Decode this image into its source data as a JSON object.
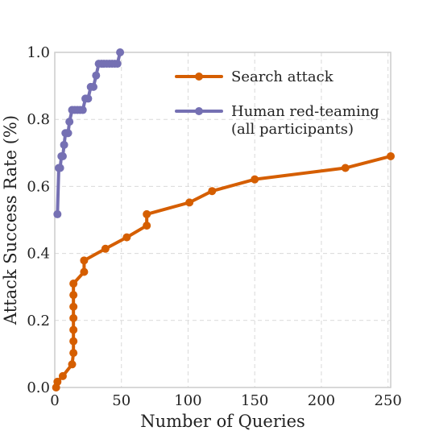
{
  "chart_data": {
    "type": "line",
    "title": "",
    "xlabel": "Number of Queries",
    "ylabel": "Attack Success Rate (%)",
    "xlim": [
      0,
      252
    ],
    "ylim": [
      0,
      1.0
    ],
    "xticks": [
      0,
      50,
      100,
      150,
      200,
      250
    ],
    "yticks": [
      0.0,
      0.2,
      0.4,
      0.6,
      0.8,
      1.0
    ],
    "xtick_labels": [
      "0",
      "50",
      "100",
      "150",
      "200",
      "250"
    ],
    "ytick_labels": [
      "0.0",
      "0.2",
      "0.4",
      "0.6",
      "0.8",
      "1.0"
    ],
    "grid": true,
    "legend_position": "top-right",
    "series": [
      {
        "name": "Search attack",
        "color": "#d55e00",
        "points": [
          [
            1,
            0.0
          ],
          [
            2,
            0.017
          ],
          [
            6,
            0.034
          ],
          [
            13,
            0.069
          ],
          [
            14,
            0.103
          ],
          [
            14,
            0.138
          ],
          [
            14,
            0.172
          ],
          [
            14,
            0.207
          ],
          [
            14,
            0.241
          ],
          [
            14,
            0.276
          ],
          [
            14,
            0.31
          ],
          [
            22,
            0.345
          ],
          [
            22,
            0.379
          ],
          [
            38,
            0.414
          ],
          [
            54,
            0.448
          ],
          [
            69,
            0.483
          ],
          [
            69,
            0.517
          ],
          [
            101,
            0.552
          ],
          [
            118,
            0.586
          ],
          [
            150,
            0.621
          ],
          [
            218,
            0.655
          ],
          [
            252,
            0.69
          ]
        ]
      },
      {
        "name": "Human red-teaming\n(all participants)",
        "color": "#7570b3",
        "points": [
          [
            2,
            0.517
          ],
          [
            3,
            0.655
          ],
          [
            4,
            0.655
          ],
          [
            5,
            0.69
          ],
          [
            6,
            0.69
          ],
          [
            7,
            0.724
          ],
          [
            8,
            0.759
          ],
          [
            9,
            0.759
          ],
          [
            10,
            0.759
          ],
          [
            11,
            0.793
          ],
          [
            13,
            0.828
          ],
          [
            15,
            0.828
          ],
          [
            17,
            0.828
          ],
          [
            19,
            0.828
          ],
          [
            21,
            0.828
          ],
          [
            23,
            0.862
          ],
          [
            25,
            0.862
          ],
          [
            27,
            0.897
          ],
          [
            29,
            0.897
          ],
          [
            31,
            0.931
          ],
          [
            33,
            0.966
          ],
          [
            35,
            0.966
          ],
          [
            37,
            0.966
          ],
          [
            39,
            0.966
          ],
          [
            41,
            0.966
          ],
          [
            43,
            0.966
          ],
          [
            45,
            0.966
          ],
          [
            47,
            0.966
          ],
          [
            49,
            1.0
          ]
        ]
      }
    ]
  }
}
